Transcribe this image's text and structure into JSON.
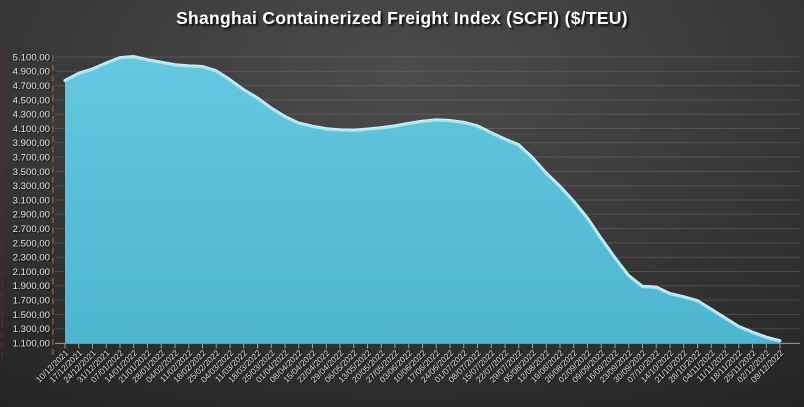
{
  "title": "Shanghai Containerized Freight Index  (SCFI) ($/TEU)",
  "colors": {
    "background_center": "#4c4c4c",
    "background_edge": "#1b1b1b",
    "area_fill_top": "#63c8e0",
    "area_fill_bottom": "#4eb5d1",
    "area_edge": "#a5e7f3",
    "area_edge_highlight": "#d9f7fc",
    "gridline": "#8a8a8a",
    "axis_line": "#9a9a9a",
    "tick": "#aaaaaa",
    "y_label": "#e6e6e6",
    "x_label": "#dcdcdc",
    "title_text": "#ffffff",
    "guide_dash_orange": "#b46a28",
    "guide_dash_red": "#7a2424"
  },
  "chart_data": {
    "type": "area",
    "title": "Shanghai Containerized Freight Index  (SCFI) ($/TEU)",
    "legend": "none",
    "grid": "horizontal",
    "ylim": [
      1100,
      5100
    ],
    "y_tick_step": 200,
    "number_format": "#.##0,00",
    "y_tick_labels": [
      "5.100,00",
      "4.900,00",
      "4.700,00",
      "4.500,00",
      "4.300,00",
      "4.100,00",
      "3.900,00",
      "3.700,00",
      "3.500,00",
      "3.300,00",
      "3.100,00",
      "2.900,00",
      "2.700,00",
      "2.500,00",
      "2.300,00",
      "2.100,00",
      "1.900,00",
      "1.700,00",
      "1.500,00",
      "1.300,00",
      "1.100,00"
    ],
    "x": [
      "10/12/2021",
      "17/12/2021",
      "24/12/2021",
      "31/12/2021",
      "07/01/2022",
      "14/01/2022",
      "21/01/2022",
      "28/01/2022",
      "04/02/2022",
      "11/02/2022",
      "18/02/2022",
      "25/02/2022",
      "04/03/2022",
      "11/03/2022",
      "18/03/2022",
      "25/03/2022",
      "01/04/2022",
      "08/04/2022",
      "15/04/2022",
      "22/04/2022",
      "29/04/2022",
      "06/05/2022",
      "13/05/2022",
      "20/05/2022",
      "27/05/2022",
      "03/06/2022",
      "10/06/2022",
      "17/06/2022",
      "24/06/2022",
      "01/07/2022",
      "08/07/2022",
      "15/07/2022",
      "22/07/2022",
      "29/07/2022",
      "05/08/2022",
      "12/08/2022",
      "19/08/2022",
      "26/08/2022",
      "02/09/2022",
      "09/09/2022",
      "16/09/2022",
      "23/09/2022",
      "30/09/2022",
      "07/10/2022",
      "14/10/2022",
      "21/10/2022",
      "28/10/2022",
      "04/11/2022",
      "11/11/2022",
      "18/11/2022",
      "25/11/2022",
      "02/12/2022",
      "09/12/2022"
    ],
    "values": [
      4770,
      4870,
      4930,
      5015,
      5090,
      5105,
      5060,
      5025,
      4990,
      4975,
      4965,
      4905,
      4780,
      4640,
      4525,
      4385,
      4265,
      4175,
      4130,
      4095,
      4080,
      4075,
      4090,
      4110,
      4135,
      4170,
      4200,
      4220,
      4210,
      4185,
      4135,
      4040,
      3950,
      3870,
      3690,
      3475,
      3290,
      3080,
      2845,
      2560,
      2290,
      2040,
      1890,
      1880,
      1790,
      1745,
      1690,
      1570,
      1450,
      1330,
      1250,
      1180,
      1130
    ]
  }
}
